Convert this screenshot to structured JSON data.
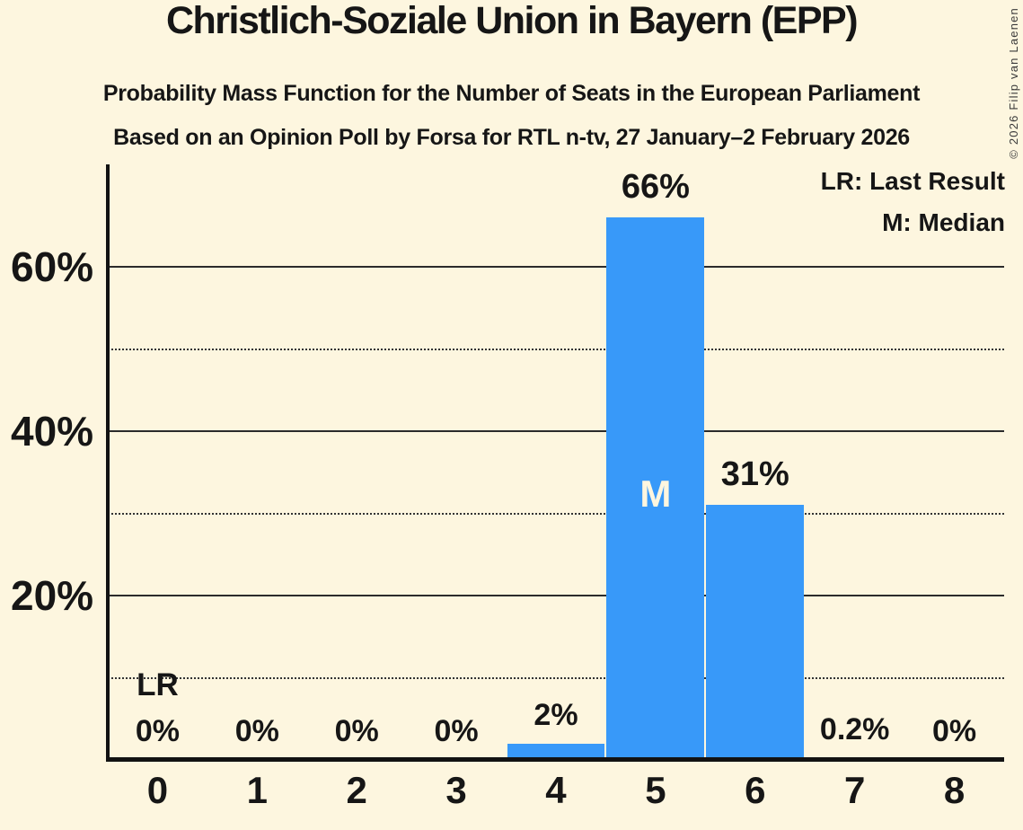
{
  "header": {
    "title": "Christlich-Soziale Union in Bayern (EPP)",
    "subtitle": "Probability Mass Function for the Number of Seats in the European Parliament",
    "source_line": "Based on an Opinion Poll by Forsa for RTL n-tv, 27 January–2 February 2026"
  },
  "legend": {
    "lr": "LR: Last Result",
    "m": "M: Median"
  },
  "copyright": "© 2026 Filip van Laenen",
  "colors": {
    "background": "#FDF6DF",
    "bar": "#3899F9",
    "text": "#161616",
    "median_label": "#FDF6DF",
    "axis": "#121212"
  },
  "chart_data": {
    "type": "bar",
    "title": "Probability Mass Function for the Number of Seats in the European Parliament",
    "xlabel": "",
    "ylabel": "",
    "categories": [
      "0",
      "1",
      "2",
      "3",
      "4",
      "5",
      "6",
      "7",
      "8"
    ],
    "values": [
      0,
      0,
      0,
      0,
      2,
      66,
      31,
      0.2,
      0
    ],
    "value_labels": [
      "0%",
      "0%",
      "0%",
      "0%",
      "2%",
      "66%",
      "31%",
      "0.2%",
      "0%"
    ],
    "ylim": [
      0,
      72.5
    ],
    "yticks": [
      {
        "pct": 20,
        "label": "20%",
        "style": "solid"
      },
      {
        "pct": 40,
        "label": "40%",
        "style": "solid"
      },
      {
        "pct": 60,
        "label": "60%",
        "style": "solid"
      }
    ],
    "minor_gridlines_pct": [
      10,
      30,
      50
    ],
    "grid": true,
    "legend_position": "top-right",
    "annotations": {
      "lr_label": "LR",
      "lr_seats": 0,
      "m_label": "M",
      "m_seats": 5
    }
  }
}
